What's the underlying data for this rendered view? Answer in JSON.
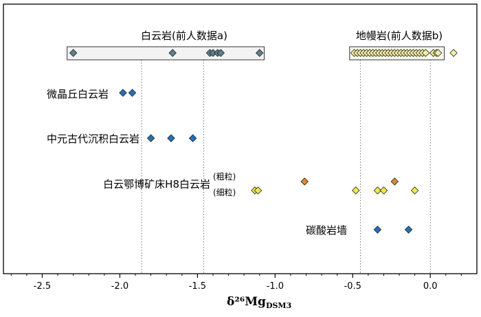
{
  "chart_data": {
    "type": "scatter",
    "xlabel": {
      "main": "δ²⁶Mg",
      "sub": "DSM3"
    },
    "xlim": [
      -2.75,
      0.3
    ],
    "xticks": [
      {
        "value": -2.5,
        "label": "-2.5"
      },
      {
        "value": -2.0,
        "label": "-2.0"
      },
      {
        "value": -1.5,
        "label": "-1.5"
      },
      {
        "value": -1.0,
        "label": "-1.0"
      },
      {
        "value": -0.5,
        "label": "-0.5"
      },
      {
        "value": 0.0,
        "label": "0.0"
      }
    ],
    "reference_lines": [
      -1.86,
      -1.46,
      -0.45,
      0.0
    ],
    "ranges": [
      {
        "label": "白云岩(前人数据a)",
        "from": -2.34,
        "to": -1.07
      },
      {
        "label": "地幔岩(前人数据b)",
        "from": -0.52,
        "to": 0.09
      }
    ],
    "rows": [
      {
        "label": "",
        "color": "#5f7f8f",
        "x": [
          -2.3,
          -1.66,
          -1.42,
          -1.4,
          -1.37,
          -1.35,
          -1.1
        ]
      },
      {
        "label": "",
        "color": "#f5f0a0",
        "x": [
          -0.49,
          -0.47,
          -0.45,
          -0.43,
          -0.41,
          -0.39,
          -0.37,
          -0.35,
          -0.33,
          -0.31,
          -0.29,
          -0.27,
          -0.25,
          -0.23,
          -0.21,
          -0.19,
          -0.17,
          -0.15,
          -0.13,
          -0.11,
          -0.09,
          -0.07,
          -0.05,
          -0.03,
          0.02,
          0.04,
          0.05,
          0.15
        ]
      },
      {
        "label": "微晶丘白云岩",
        "color": "#2470b8",
        "x": [
          -1.98,
          -1.92
        ]
      },
      {
        "label": "中元古代沉积白云岩",
        "color": "#2470b8",
        "x": [
          -1.8,
          -1.67,
          -1.53
        ]
      },
      {
        "label": "白云鄂博矿床H8白云岩",
        "sublabel": "(粗粒)",
        "color": "#d98a2e",
        "x": [
          -0.81,
          -0.23
        ]
      },
      {
        "label": "",
        "sublabel": "(细粒)",
        "color": "#f0e84a",
        "x": [
          -1.13,
          -1.11,
          -0.48,
          -0.34,
          -0.3,
          -0.1
        ]
      },
      {
        "label": "碳酸岩墙",
        "color": "#2470b8",
        "x": [
          -0.34,
          -0.14
        ]
      }
    ]
  }
}
